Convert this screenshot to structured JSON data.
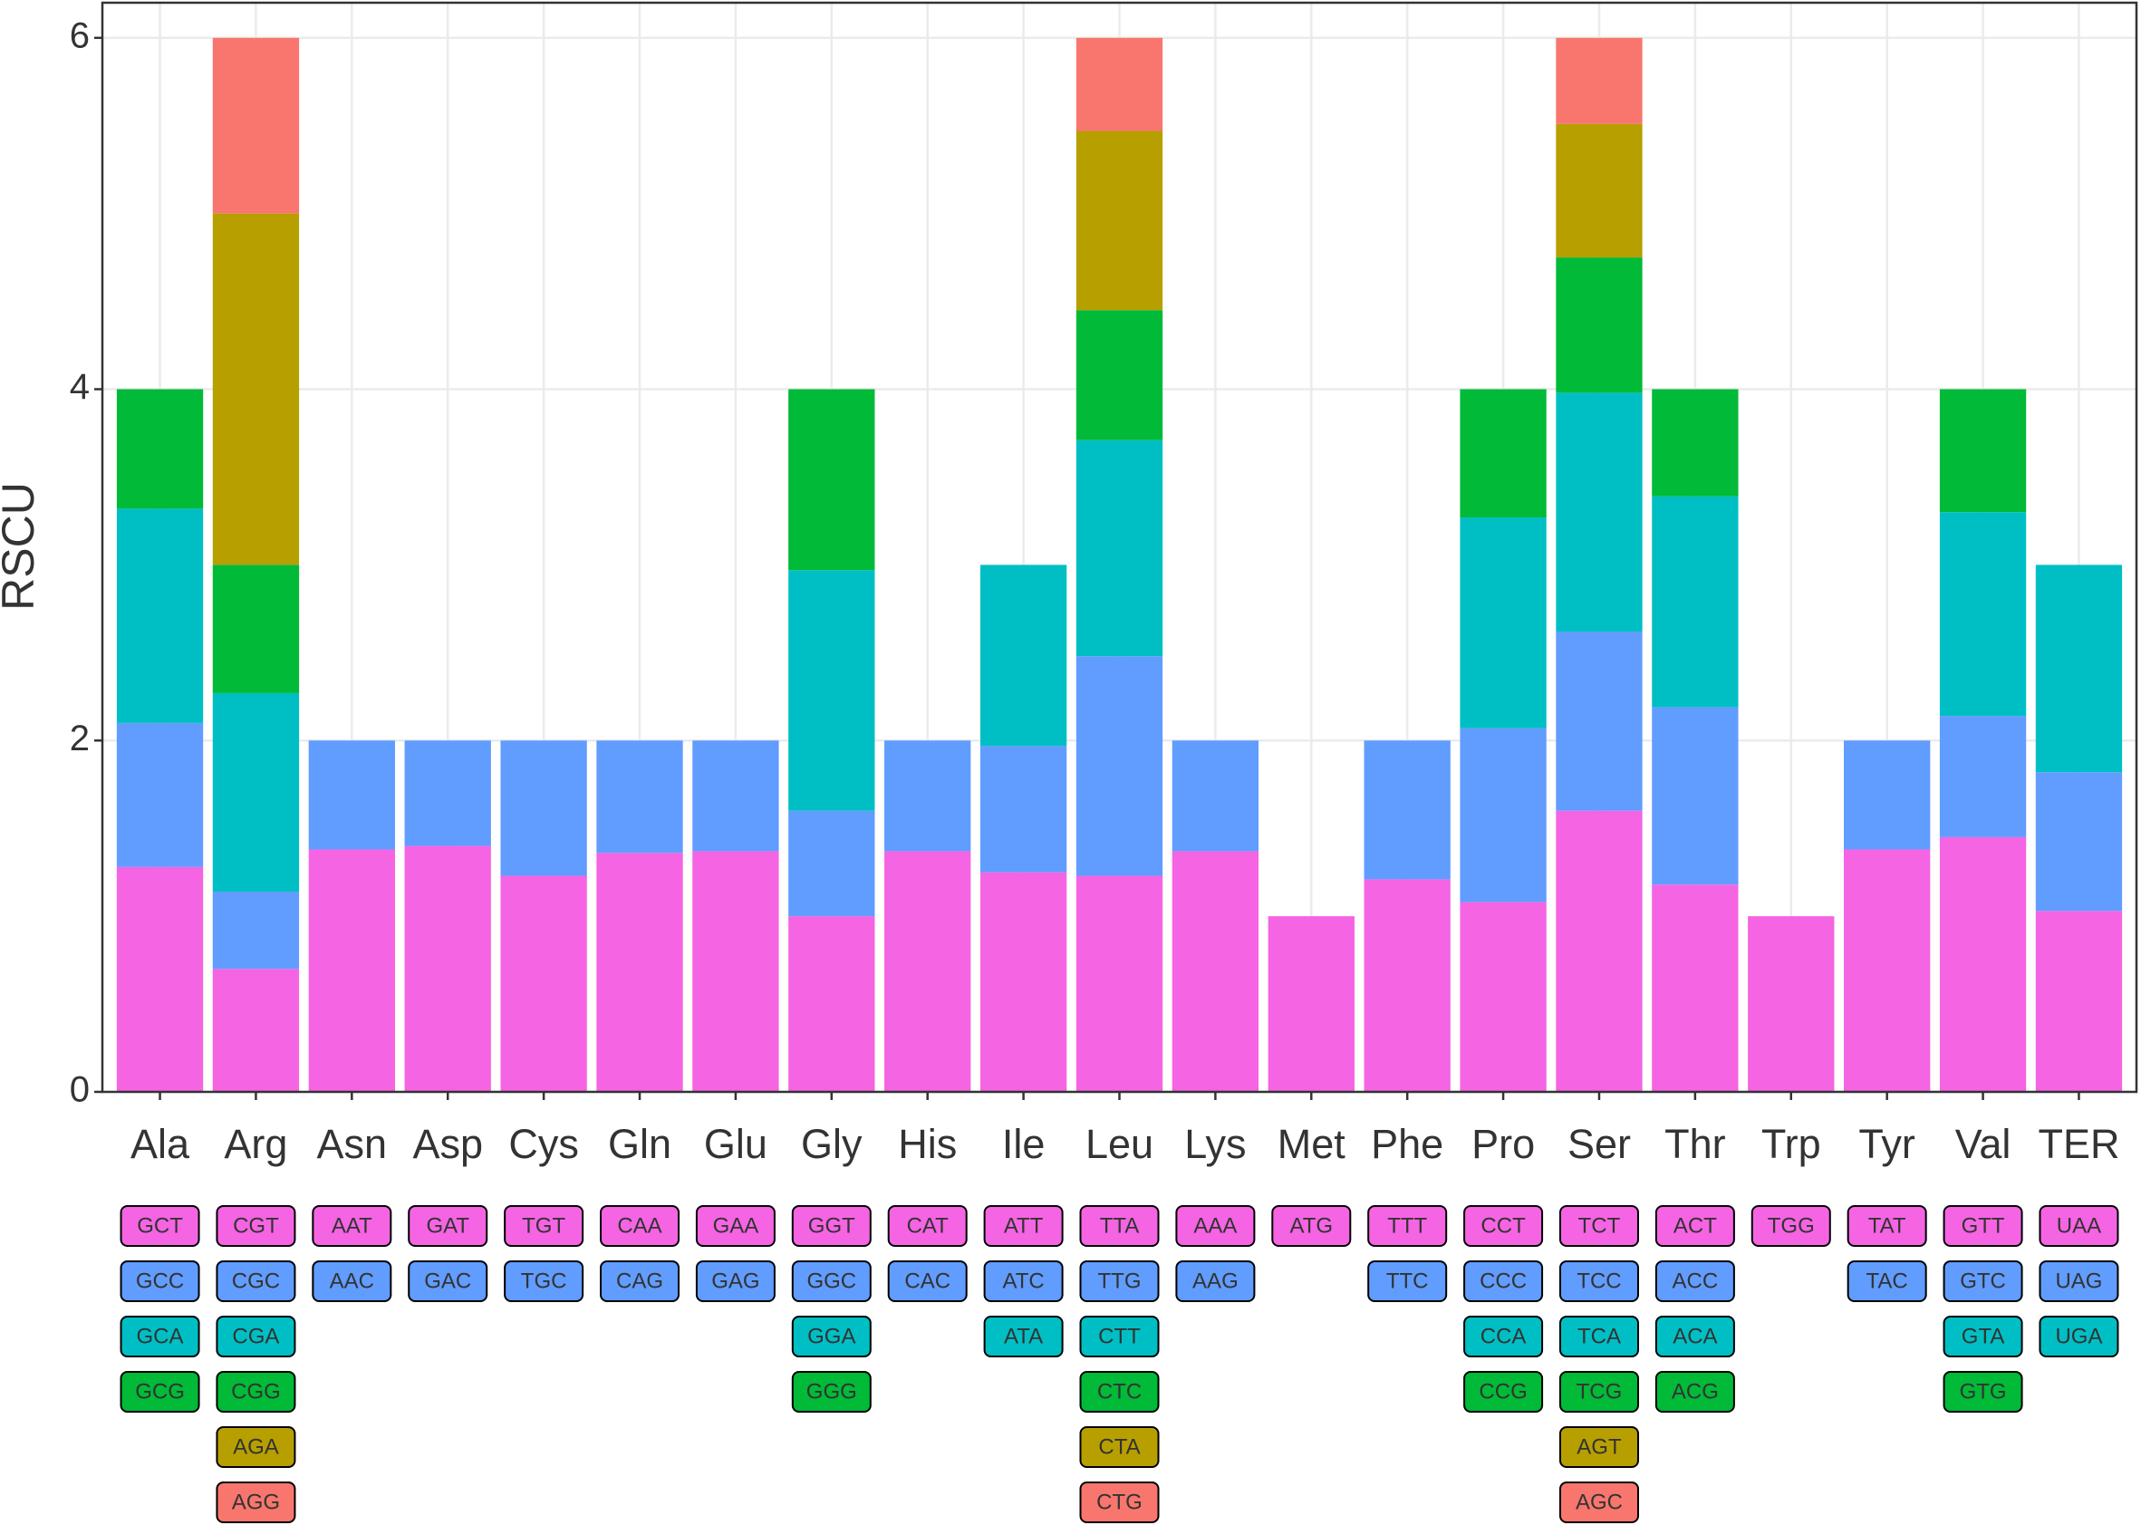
{
  "chart_data": {
    "type": "bar",
    "stacked": true,
    "y_label": "RSCU",
    "categories": [
      "Ala",
      "Arg",
      "Asn",
      "Asp",
      "Cys",
      "Gln",
      "Glu",
      "Gly",
      "His",
      "Ile",
      "Leu",
      "Lys",
      "Met",
      "Phe",
      "Pro",
      "Ser",
      "Thr",
      "Trp",
      "Tyr",
      "Val",
      "TER"
    ],
    "series": [
      {
        "color": "#F564E3",
        "values": [
          1.28,
          0.7,
          1.38,
          1.4,
          1.23,
          1.36,
          1.37,
          1.0,
          1.37,
          1.25,
          1.23,
          1.37,
          1.0,
          1.21,
          1.08,
          1.6,
          1.18,
          1.0,
          1.38,
          1.45,
          1.03
        ],
        "codons": [
          "GCT",
          "CGT",
          "AAT",
          "GAT",
          "TGT",
          "CAA",
          "GAA",
          "GGT",
          "CAT",
          "ATT",
          "TTA",
          "AAA",
          "ATG",
          "TTT",
          "CCT",
          "TCT",
          "ACT",
          "TGG",
          "TAT",
          "GTT",
          "UAA"
        ]
      },
      {
        "color": "#619CFF",
        "values": [
          0.82,
          0.44,
          0.62,
          0.6,
          0.77,
          0.64,
          0.63,
          0.6,
          0.63,
          0.72,
          1.25,
          0.63,
          null,
          0.79,
          0.99,
          1.02,
          1.01,
          null,
          0.62,
          0.69,
          0.79
        ],
        "codons": [
          "GCC",
          "CGC",
          "AAC",
          "GAC",
          "TGC",
          "CAG",
          "GAG",
          "GGC",
          "CAC",
          "ATC",
          "TTG",
          "AAG",
          null,
          "TTC",
          "CCC",
          "TCC",
          "ACC",
          null,
          "TAC",
          "GTC",
          "UAG"
        ]
      },
      {
        "color": "#00BFC4",
        "values": [
          1.22,
          1.13,
          null,
          null,
          null,
          null,
          null,
          1.37,
          null,
          1.03,
          1.23,
          null,
          null,
          null,
          1.2,
          1.36,
          1.2,
          null,
          null,
          1.16,
          1.18
        ],
        "codons": [
          "GCA",
          "CGA",
          null,
          null,
          null,
          null,
          null,
          "GGA",
          null,
          "ATA",
          "CTT",
          null,
          null,
          null,
          "CCA",
          "TCA",
          "ACA",
          null,
          null,
          "GTA",
          "UGA"
        ]
      },
      {
        "color": "#00BA38",
        "values": [
          0.68,
          0.73,
          null,
          null,
          null,
          null,
          null,
          1.03,
          null,
          null,
          0.74,
          null,
          null,
          null,
          0.73,
          0.77,
          0.61,
          null,
          null,
          0.7,
          null
        ],
        "codons": [
          "GCG",
          "CGG",
          null,
          null,
          null,
          null,
          null,
          "GGG",
          null,
          null,
          "CTC",
          null,
          null,
          null,
          "CCG",
          "TCG",
          "ACG",
          null,
          null,
          "GTG",
          null
        ]
      },
      {
        "color": "#B79F00",
        "values": [
          null,
          2.0,
          null,
          null,
          null,
          null,
          null,
          null,
          null,
          null,
          1.02,
          null,
          null,
          null,
          null,
          0.76,
          null,
          null,
          null,
          null,
          null
        ],
        "codons": [
          null,
          "AGA",
          null,
          null,
          null,
          null,
          null,
          null,
          null,
          null,
          "CTA",
          null,
          null,
          null,
          null,
          "AGT",
          null,
          null,
          null,
          null,
          null
        ]
      },
      {
        "color": "#F8766D",
        "values": [
          null,
          1.0,
          null,
          null,
          null,
          null,
          null,
          null,
          null,
          null,
          0.53,
          null,
          null,
          null,
          null,
          0.49,
          null,
          null,
          null,
          null,
          null
        ],
        "codons": [
          null,
          "AGG",
          null,
          null,
          null,
          null,
          null,
          null,
          null,
          null,
          "CTG",
          null,
          null,
          null,
          null,
          "AGC",
          null,
          null,
          null,
          null,
          null
        ]
      }
    ],
    "ylim": [
      0,
      6.2
    ],
    "yticks": [
      0,
      2,
      4,
      6
    ],
    "grid": true
  }
}
